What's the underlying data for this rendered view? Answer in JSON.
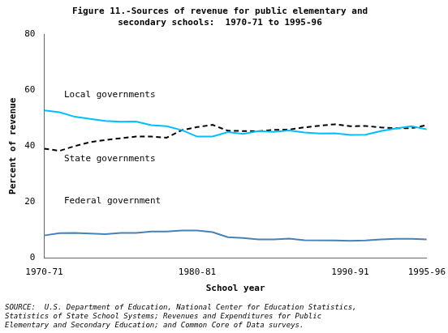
{
  "chart_data": {
    "type": "line",
    "title": [
      "Figure 11.-Sources of revenue for public elementary and",
      "secondary schools:  1970-71 to 1995-96"
    ],
    "ylabel": "Percent of revenue",
    "xlabel": "School year",
    "source": "SOURCE:  U.S. Department of Education, National Center for Education Statistics,\nStatistics of State School Systems; Revenues and Expenditures for Public\nElementary and Secondary Education; and Common Core of Data surveys.",
    "xlim": [
      1970,
      1995
    ],
    "xticks": [
      {
        "value": 1970,
        "label": "1970-71"
      },
      {
        "value": 1980,
        "label": "1980-81"
      },
      {
        "value": 1990,
        "label": "1990-91"
      },
      {
        "value": 1995,
        "label": "1995-96"
      }
    ],
    "ylim": [
      0,
      80
    ],
    "yticks": [
      0,
      20,
      40,
      60,
      80
    ],
    "grid": false,
    "series": [
      {
        "color": "#00BFFF",
        "line_style": "solid",
        "x": [
          1970,
          1971,
          1972,
          1973,
          1974,
          1975,
          1976,
          1977,
          1978,
          1979,
          1980,
          1981,
          1982,
          1983,
          1984,
          1985,
          1986,
          1987,
          1988,
          1989,
          1990,
          1991,
          1992,
          1993,
          1994,
          1995
        ],
        "values": [
          52.8,
          52.1,
          50.5,
          49.7,
          49.0,
          48.7,
          48.8,
          47.5,
          47.1,
          45.7,
          43.4,
          43.4,
          45.0,
          44.4,
          45.4,
          45.1,
          45.6,
          44.9,
          44.5,
          44.6,
          44.0,
          44.1,
          45.4,
          46.3,
          47.1,
          46.0
        ]
      },
      {
        "color": "black",
        "line_style": "dashed",
        "x": [
          1970,
          1971,
          1972,
          1973,
          1974,
          1975,
          1976,
          1977,
          1978,
          1979,
          1980,
          1981,
          1982,
          1983,
          1984,
          1985,
          1986,
          1987,
          1988,
          1989,
          1990,
          1991,
          1992,
          1993,
          1994,
          1995
        ],
        "values": [
          39.1,
          38.3,
          40.0,
          41.4,
          42.2,
          42.8,
          43.4,
          43.4,
          43.0,
          45.7,
          46.8,
          47.6,
          45.5,
          45.4,
          45.3,
          45.8,
          45.9,
          46.7,
          47.3,
          47.8,
          47.1,
          47.2,
          46.7,
          46.4,
          46.4,
          47.5
        ]
      },
      {
        "color": "#4682B4",
        "line_style": "solid",
        "x": [
          1970,
          1971,
          1972,
          1973,
          1974,
          1975,
          1976,
          1977,
          1978,
          1979,
          1980,
          1981,
          1982,
          1983,
          1984,
          1985,
          1986,
          1987,
          1989,
          1990,
          1991,
          1992,
          1993,
          1994,
          1995
        ],
        "values": [
          8.0,
          8.8,
          8.9,
          8.7,
          8.5,
          8.9,
          8.9,
          9.4,
          9.4,
          9.8,
          9.8,
          9.2,
          7.4,
          7.1,
          6.6,
          6.6,
          6.9,
          6.3,
          6.2,
          6.1,
          6.2,
          6.6,
          6.8,
          6.8,
          6.6
        ]
      }
    ],
    "annotations": [
      {
        "text": "Local governments",
        "x": 1971.3,
        "y": 57.5
      },
      {
        "text": "State governments",
        "x": 1971.3,
        "y": 34.5
      },
      {
        "text": "Federal government",
        "x": 1971.3,
        "y": 19.5
      }
    ]
  }
}
